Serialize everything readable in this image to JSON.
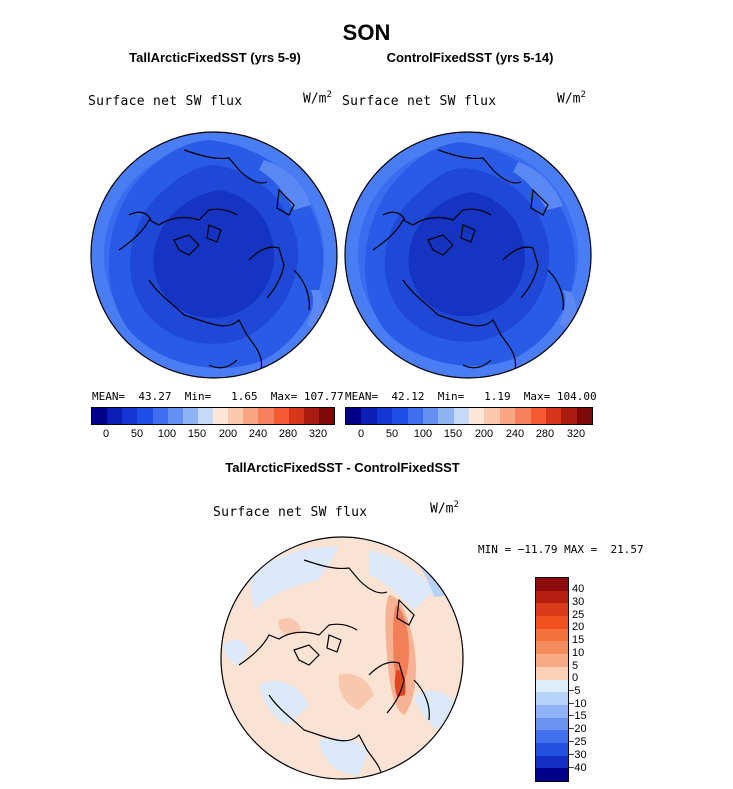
{
  "figure": {
    "title": "SON"
  },
  "panels": {
    "left": {
      "title": "TallArcticFixedSST (yrs 5-9)",
      "variable": "Surface net SW flux",
      "unit_base": "W/m",
      "unit_exp": "2",
      "stats": "MEAN=  43.27  Min=   1.65  Max= 107.77"
    },
    "right": {
      "title": "ControlFixedSST (yrs 5-14)",
      "variable": "Surface net SW flux",
      "unit_base": "W/m",
      "unit_exp": "2",
      "stats": "MEAN=  42.12  Min=   1.19  Max= 104.00"
    },
    "diff": {
      "title": "TallArcticFixedSST - ControlFixedSST",
      "variable": "Surface net SW flux",
      "unit_base": "W/m",
      "unit_exp": "2",
      "stats": "MIN = −11.79 MAX =  21.57"
    }
  },
  "colorbar_abs": {
    "tick_labels": [
      "0",
      "50",
      "100",
      "150",
      "200",
      "240",
      "280",
      "320"
    ],
    "colors": [
      "#00008b",
      "#0a1fb4",
      "#1437d2",
      "#1f4ee6",
      "#3e6df0",
      "#6390f2",
      "#8fb4f5",
      "#c4daf8",
      "#fde6d8",
      "#fcc7ad",
      "#f9a584",
      "#f6805c",
      "#f35a34",
      "#d8361a",
      "#ad1a10",
      "#7d0a0a"
    ]
  },
  "colorbar_diff": {
    "tick_labels": [
      "40",
      "30",
      "25",
      "20",
      "15",
      "10",
      "5",
      "0",
      "−5",
      "−10",
      "−15",
      "−20",
      "−25",
      "−30",
      "−40"
    ],
    "colors": [
      "#8b0a0a",
      "#b51e10",
      "#d83a1a",
      "#f0501e",
      "#f4703c",
      "#f58c5e",
      "#f7ab86",
      "#fbd0b6",
      "#dfeefc",
      "#b8d3f9",
      "#8fb2f4",
      "#6a92f0",
      "#4270ec",
      "#2450e0",
      "#1230c2",
      "#00008b"
    ]
  }
}
